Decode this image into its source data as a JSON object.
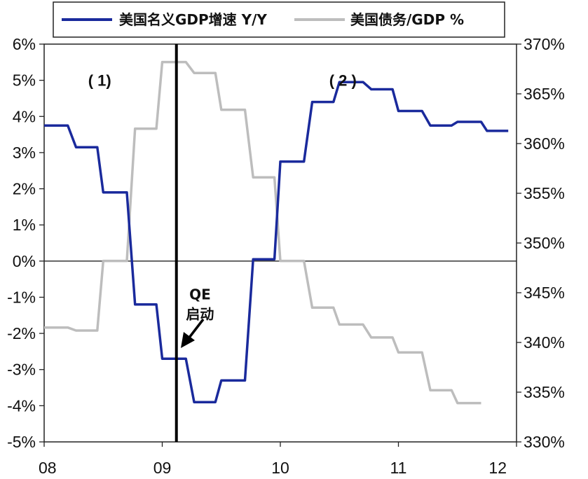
{
  "chart_data": {
    "type": "line",
    "x_ticks": [
      "08",
      "09",
      "10",
      "11",
      "12"
    ],
    "x_range": [
      2008,
      2012
    ],
    "y_left": {
      "ticks": [
        "6%",
        "5%",
        "4%",
        "3%",
        "2%",
        "1%",
        "0%",
        "-1%",
        "-2%",
        "-3%",
        "-4%",
        "-5%"
      ],
      "range": [
        -5,
        6
      ]
    },
    "y_right": {
      "ticks": [
        "370%",
        "365%",
        "360%",
        "355%",
        "350%",
        "345%",
        "340%",
        "335%",
        "330%"
      ],
      "range": [
        330,
        370
      ]
    },
    "legend": {
      "placement": "top"
    },
    "series": [
      {
        "name": "美国名义GDP增速 Y/Y",
        "axis": "left",
        "color": "#1a2a9c",
        "x": [
          2008.0,
          2008.2,
          2008.27,
          2008.45,
          2008.5,
          2008.7,
          2008.77,
          2008.95,
          2009.0,
          2009.2,
          2009.27,
          2009.45,
          2009.5,
          2009.7,
          2009.77,
          2009.95,
          2010.0,
          2010.2,
          2010.27,
          2010.45,
          2010.5,
          2010.7,
          2010.77,
          2010.95,
          2011.0,
          2011.2,
          2011.27,
          2011.45,
          2011.5,
          2011.7,
          2011.75,
          2011.93
        ],
        "y": [
          3.75,
          3.75,
          3.15,
          3.15,
          1.9,
          1.9,
          -1.2,
          -1.2,
          -2.7,
          -2.7,
          -3.9,
          -3.9,
          -3.3,
          -3.3,
          0.05,
          0.05,
          2.75,
          2.75,
          4.4,
          4.4,
          4.95,
          4.95,
          4.75,
          4.75,
          4.15,
          4.15,
          3.75,
          3.75,
          3.85,
          3.85,
          3.6,
          3.6
        ]
      },
      {
        "name": "美国债务/GDP %",
        "axis": "right",
        "color": "#bdbdbd",
        "x": [
          2008.0,
          2008.2,
          2008.27,
          2008.45,
          2008.5,
          2008.7,
          2008.77,
          2008.95,
          2009.0,
          2009.2,
          2009.27,
          2009.45,
          2009.5,
          2009.7,
          2009.77,
          2009.95,
          2010.0,
          2010.2,
          2010.27,
          2010.45,
          2010.5,
          2010.7,
          2010.77,
          2010.95,
          2011.0,
          2011.2,
          2011.27,
          2011.45,
          2011.5,
          2011.7
        ],
        "y": [
          341.5,
          341.5,
          341.2,
          341.2,
          348.2,
          348.2,
          361.5,
          361.5,
          368.2,
          368.2,
          367.1,
          367.1,
          363.4,
          363.4,
          356.6,
          356.6,
          348.2,
          348.2,
          343.5,
          343.5,
          341.8,
          341.8,
          340.5,
          340.5,
          339.0,
          339.0,
          335.2,
          335.2,
          333.9,
          333.9
        ]
      }
    ],
    "vline_x": 2009.12,
    "annotations": [
      {
        "id": "note1",
        "text": "( 1)",
        "x": 2008.47,
        "y": 5.0
      },
      {
        "id": "note2",
        "text": "( 2 )",
        "x": 2010.53,
        "y": 5.0
      },
      {
        "id": "qe",
        "lines": [
          "QE",
          "启动"
        ],
        "x": 2009.32,
        "y": -0.75
      }
    ]
  }
}
